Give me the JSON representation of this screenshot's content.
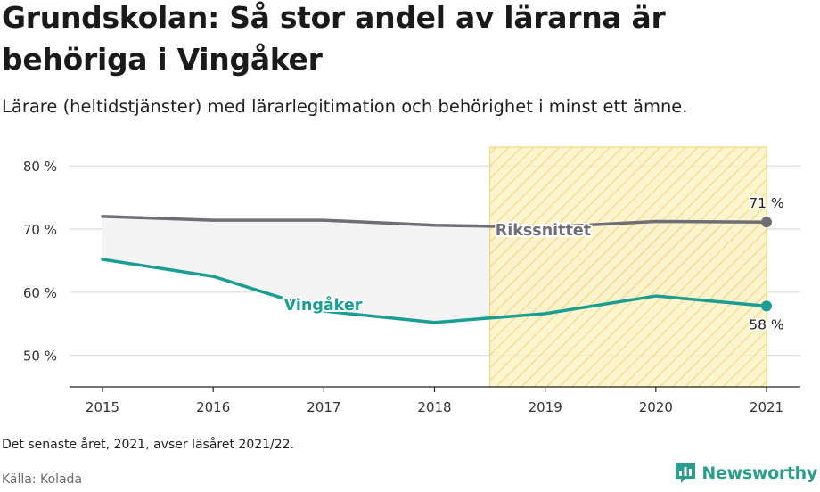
{
  "title": "Grundskolan: Så stor andel av lärarna är behöriga i Vingåker",
  "subtitle": "Lärare (heltidstjänster) med lärarlegitimation och behörighet i minst ett ämne.",
  "footnote": "Det senaste året, 2021, avser läsåret 2021/22.",
  "source": "Källa: Kolada",
  "brand": {
    "name": "Newsworthy",
    "icon": "newsworthy-logo-icon",
    "color": "#2a9d8f"
  },
  "colors": {
    "national": "#6e6e76",
    "local": "#1a9e93",
    "highlight_fill": "#fdf3c4",
    "highlight_stripe": "#f0cf5a",
    "band_fill": "#f3f3f3"
  },
  "chart_data": {
    "type": "line",
    "title": "Grundskolan: Så stor andel av lärarna är behöriga i Vingåker",
    "x": [
      2015,
      2016,
      2017,
      2018,
      2019,
      2020,
      2021
    ],
    "x_tick_labels": [
      "2015",
      "2016",
      "2017",
      "2018",
      "2019",
      "2020",
      "2021"
    ],
    "ylim": [
      45,
      83
    ],
    "y_ticks": [
      50,
      60,
      70,
      80
    ],
    "y_tick_labels": [
      "50 %",
      "60 %",
      "70 %",
      "80 %"
    ],
    "grid": true,
    "highlighted_period": [
      2018.5,
      2021
    ],
    "series": [
      {
        "name": "Rikssnittet",
        "values": [
          72.0,
          71.4,
          71.4,
          70.6,
          70.3,
          71.2,
          71.1
        ],
        "end_label": "71 %"
      },
      {
        "name": "Vingåker",
        "values": [
          65.2,
          62.5,
          57.0,
          55.2,
          56.6,
          59.4,
          57.8
        ],
        "end_label": "58 %"
      }
    ]
  }
}
